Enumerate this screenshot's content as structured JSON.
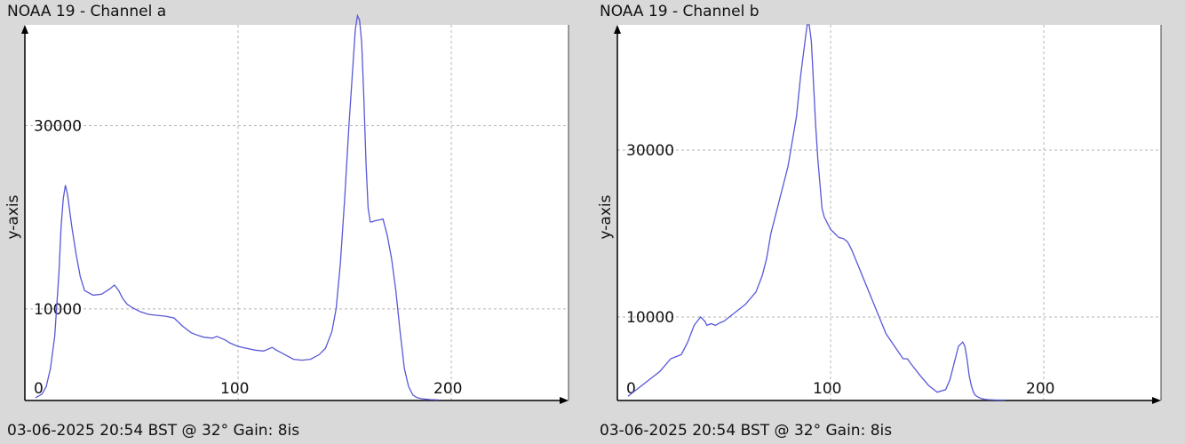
{
  "colors": {
    "background": "#d9d9d9",
    "plot_background": "#ffffff",
    "series": "#5858d8",
    "grid": "#b4b4b4",
    "axis": "#000000"
  },
  "chart_data": [
    {
      "type": "line",
      "title": "NOAA 19 - Channel a",
      "ylabel": "y-axis",
      "xlabel": "",
      "footer": "03-06-2025 20:54 BST @ 32° Gain: 8is",
      "xlim": [
        0,
        255
      ],
      "ylim": [
        0,
        41000
      ],
      "x_ticks": [
        0,
        100,
        200
      ],
      "y_ticks": [
        10000,
        30000
      ],
      "grid": true,
      "series": [
        {
          "x": [
            5,
            8,
            10,
            12,
            14,
            16,
            17,
            18,
            19,
            20,
            22,
            24,
            26,
            28,
            32,
            36,
            40,
            42,
            44,
            46,
            48,
            50,
            54,
            58,
            62,
            66,
            70,
            74,
            78,
            80,
            84,
            88,
            90,
            92,
            94,
            96,
            98,
            100,
            104,
            108,
            112,
            116,
            118,
            122,
            126,
            130,
            134,
            138,
            141,
            144,
            146,
            148,
            150,
            152,
            154,
            155,
            156,
            157,
            158,
            159,
            160,
            161,
            162,
            163,
            164,
            166,
            168,
            170,
            172,
            174,
            176,
            178,
            180,
            182,
            184,
            186,
            188,
            190,
            194
          ],
          "y": [
            300,
            700,
            1500,
            3500,
            7000,
            14000,
            19000,
            22000,
            23500,
            22500,
            19000,
            16000,
            13500,
            12000,
            11500,
            11600,
            12200,
            12600,
            12000,
            11100,
            10500,
            10200,
            9700,
            9400,
            9300,
            9200,
            9000,
            8100,
            7400,
            7200,
            6900,
            6800,
            7000,
            6800,
            6600,
            6300,
            6100,
            5900,
            5700,
            5500,
            5400,
            5800,
            5500,
            5000,
            4500,
            4400,
            4500,
            5000,
            5700,
            7500,
            10000,
            15000,
            22000,
            30000,
            37000,
            40500,
            42000,
            41500,
            39000,
            33000,
            26000,
            21000,
            19500,
            19500,
            19600,
            19700,
            19800,
            18000,
            15500,
            12000,
            7500,
            3500,
            1500,
            600,
            300,
            200,
            150,
            100,
            60
          ]
        }
      ]
    },
    {
      "type": "line",
      "title": "NOAA 19 - Channel b",
      "ylabel": "y-axis",
      "xlabel": "",
      "footer": "03-06-2025 20:54 BST @ 32° Gain: 8is",
      "xlim": [
        0,
        255
      ],
      "ylim": [
        0,
        45000
      ],
      "x_ticks": [
        0,
        100,
        200
      ],
      "y_ticks": [
        10000,
        30000
      ],
      "grid": true,
      "series": [
        {
          "x": [
            5,
            10,
            15,
            20,
            25,
            30,
            33,
            36,
            39,
            41,
            42,
            44,
            46,
            48,
            50,
            55,
            60,
            65,
            68,
            70,
            72,
            75,
            78,
            80,
            82,
            84,
            86,
            88,
            89,
            90,
            91,
            92,
            93,
            94,
            95,
            96,
            97,
            98,
            100,
            102,
            104,
            106,
            108,
            110,
            114,
            118,
            122,
            126,
            130,
            134,
            136,
            138,
            142,
            146,
            150,
            154,
            156,
            158,
            160,
            162,
            163,
            164,
            165,
            166,
            167,
            168,
            170,
            172,
            174,
            178,
            182
          ],
          "y": [
            500,
            1500,
            2500,
            3500,
            5000,
            5500,
            7000,
            9000,
            10000,
            9500,
            9000,
            9200,
            9000,
            9300,
            9500,
            10500,
            11500,
            13000,
            15000,
            17000,
            20000,
            23000,
            26000,
            28000,
            31000,
            34000,
            39000,
            43000,
            45000,
            45000,
            43000,
            38000,
            33000,
            29000,
            26000,
            23000,
            22000,
            21500,
            20500,
            20000,
            19500,
            19400,
            19000,
            18000,
            15500,
            13000,
            10500,
            8000,
            6500,
            5000,
            5000,
            4300,
            3000,
            1800,
            1000,
            1300,
            2500,
            4500,
            6500,
            7000,
            6500,
            5000,
            3000,
            1800,
            1000,
            600,
            300,
            150,
            100,
            50,
            50
          ]
        }
      ]
    }
  ]
}
